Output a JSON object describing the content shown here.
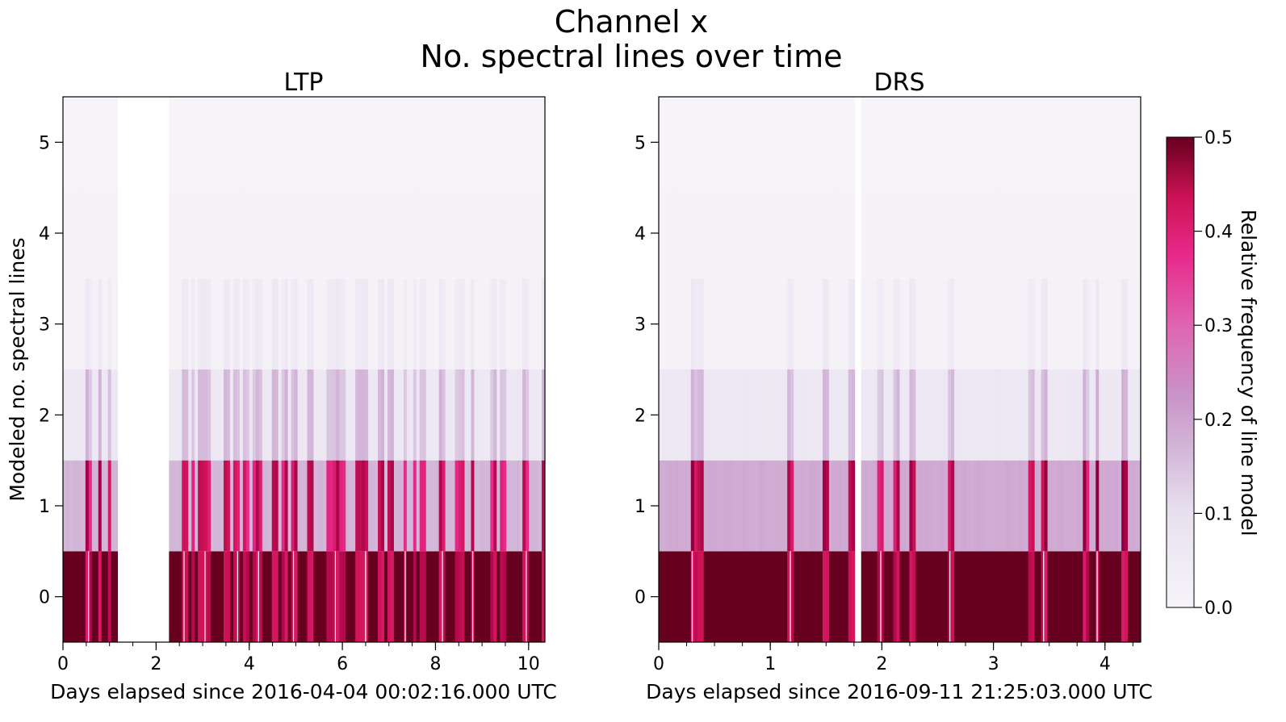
{
  "figure": {
    "title_line1": "Channel x",
    "title_line2": "No. spectral lines over time"
  },
  "colorbar": {
    "label": "Relative frequency of line model",
    "range": [
      0.0,
      0.5
    ],
    "ticks": [
      "0.0",
      "0.1",
      "0.2",
      "0.3",
      "0.4",
      "0.5"
    ],
    "colormap": "PuRd",
    "colors": {
      "low": "#f7f4f9",
      "mid_low": "#d4b9da",
      "mid": "#df65b0",
      "mid_high": "#ce1256",
      "high": "#67001f"
    }
  },
  "chart_data": [
    {
      "type": "heatmap",
      "title": "LTP",
      "xlabel": "Days elapsed since 2016-04-04 00:02:16.000 UTC",
      "ylabel": "Modeled no. spectral lines",
      "xlim": [
        0,
        10.35
      ],
      "ylim": [
        -0.5,
        5.5
      ],
      "xticks": [
        "0",
        "2",
        "4",
        "6",
        "8",
        "10"
      ],
      "yticks": [
        "0",
        "1",
        "2",
        "3",
        "4",
        "5"
      ],
      "y_categories": [
        0,
        1,
        2,
        3,
        4,
        5
      ],
      "typical_values": {
        "0": 0.5,
        "1": 0.13,
        "2": 0.04,
        "3": 0.01,
        "4": 0.005,
        "5": 0.002
      },
      "data_gaps_days": [
        [
          1.15,
          2.3
        ]
      ],
      "strong_columns_days": [
        0.55,
        0.8,
        1.0,
        2.6,
        2.8,
        2.95,
        3.05,
        3.1,
        3.5,
        3.75,
        3.95,
        4.15,
        4.2,
        4.55,
        4.75,
        4.95,
        5.3,
        5.7,
        5.85,
        6.0,
        6.35,
        6.5,
        6.85,
        7.05,
        7.35,
        7.55,
        7.75,
        8.15,
        8.5,
        8.55,
        8.8,
        9.25,
        9.45,
        9.95,
        10.35
      ]
    },
    {
      "type": "heatmap",
      "title": "DRS",
      "xlabel": "Days elapsed since 2016-09-11 21:25:03.000 UTC",
      "ylabel": "",
      "xlim": [
        0,
        4.32
      ],
      "ylim": [
        -0.5,
        5.5
      ],
      "xticks": [
        "0",
        "1",
        "2",
        "3",
        "4"
      ],
      "yticks": [
        "0",
        "1",
        "2",
        "3",
        "4",
        "5"
      ],
      "y_categories": [
        0,
        1,
        2,
        3,
        4,
        5
      ],
      "typical_values": {
        "0": 0.5,
        "1": 0.15,
        "2": 0.04,
        "3": 0.01,
        "4": 0.005,
        "5": 0.002
      },
      "data_gaps_days": [
        [
          1.77,
          1.8
        ]
      ],
      "strong_columns_days": [
        0.3,
        0.31,
        0.38,
        1.18,
        1.5,
        1.72,
        1.99,
        2.12,
        2.27,
        2.61,
        2.62,
        3.35,
        3.45,
        3.46,
        3.82,
        3.93,
        4.16,
        4.18
      ]
    }
  ]
}
